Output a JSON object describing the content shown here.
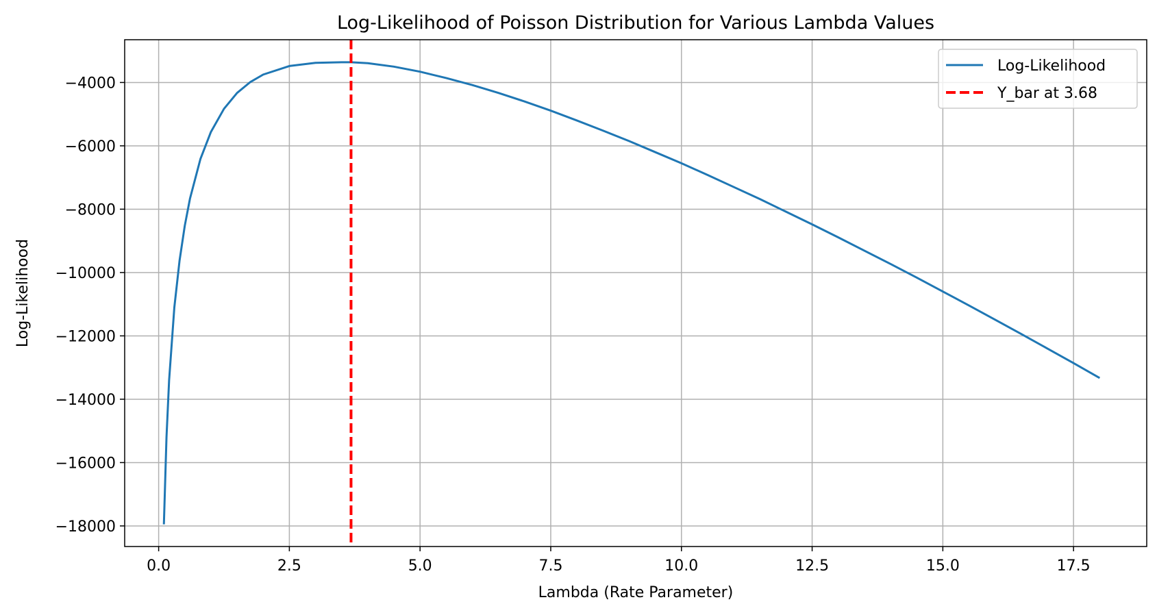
{
  "chart_data": {
    "type": "line",
    "title": "Log-Likelihood of Poisson Distribution for Various Lambda Values",
    "xlabel": "Lambda (Rate Parameter)",
    "ylabel": "Log-Likelihood",
    "xlim": [
      -0.65,
      18.9
    ],
    "ylim": [
      -18650,
      -2650
    ],
    "x_ticks": [
      0.0,
      2.5,
      5.0,
      7.5,
      10.0,
      12.5,
      15.0,
      17.5
    ],
    "x_tick_labels": [
      "0.0",
      "2.5",
      "5.0",
      "7.5",
      "10.0",
      "12.5",
      "15.0",
      "17.5"
    ],
    "y_ticks": [
      -18000,
      -16000,
      -14000,
      -12000,
      -10000,
      -8000,
      -6000,
      -4000
    ],
    "y_tick_labels": [
      "−18000",
      "−16000",
      "−14000",
      "−12000",
      "−10000",
      "−8000",
      "−6000",
      "−4000"
    ],
    "grid": true,
    "legend_position": "top-right",
    "series": [
      {
        "name": "Log-Likelihood",
        "color": "#1f77b4",
        "style": "solid",
        "x": [
          0.1,
          0.15,
          0.2,
          0.3,
          0.4,
          0.5,
          0.6,
          0.8,
          1.0,
          1.25,
          1.5,
          1.75,
          2.0,
          2.5,
          3.0,
          3.5,
          3.68,
          4.0,
          4.5,
          5.0,
          5.5,
          6.0,
          6.5,
          7.0,
          7.5,
          8.0,
          8.5,
          9.0,
          9.5,
          10.0,
          10.5,
          11.0,
          11.5,
          12.0,
          12.5,
          13.0,
          13.5,
          14.0,
          14.5,
          15.0,
          15.5,
          16.0,
          16.5,
          17.0,
          17.5,
          18.0
        ],
        "y": [
          -17950,
          -15200,
          -13400,
          -11100,
          -9620,
          -8520,
          -7660,
          -6410,
          -5560,
          -4830,
          -4330,
          -3990,
          -3750,
          -3480,
          -3380,
          -3360,
          -3360,
          -3390,
          -3500,
          -3660,
          -3860,
          -4080,
          -4330,
          -4600,
          -4890,
          -5200,
          -5520,
          -5850,
          -6200,
          -6550,
          -6920,
          -7300,
          -7680,
          -8080,
          -8480,
          -8890,
          -9310,
          -9730,
          -10160,
          -10600,
          -11040,
          -11490,
          -11940,
          -12400,
          -12860,
          -13330
        ]
      },
      {
        "name": "Y_bar at 3.68",
        "color": "#ff0000",
        "style": "dashed",
        "vertical_x": 3.68
      }
    ]
  }
}
